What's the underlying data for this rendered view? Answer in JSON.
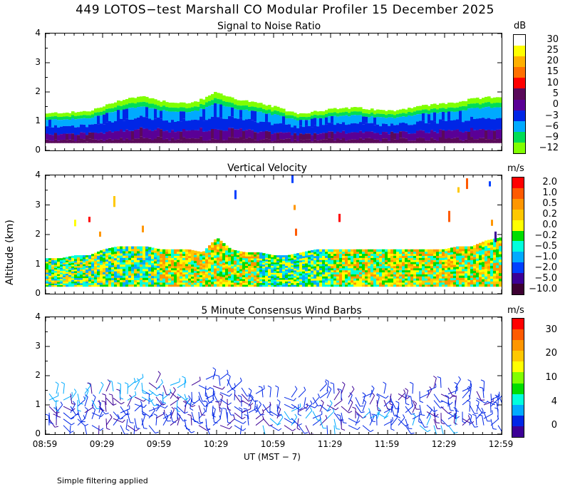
{
  "title": "449 LOTOS−test Marshall CO Modular Profiler 15 December 2025",
  "footer": "Simple filtering applied",
  "chart_data": [
    {
      "type": "heatmap",
      "title": "Signal to Noise Ratio",
      "units": "dB",
      "ylabel": "Altitude (km)",
      "ylim": [
        0,
        4
      ],
      "yticks": [
        "0",
        "1",
        "2",
        "3",
        "4"
      ],
      "xticks": [
        "08:59",
        "09:29",
        "09:59",
        "10:29",
        "10:59",
        "11:29",
        "11:59",
        "12:29",
        "12:59"
      ],
      "colorbar": {
        "labels": [
          "30",
          "25",
          "20",
          "15",
          "10",
          "5",
          "0",
          "−3",
          "−6",
          "−9",
          "−12"
        ],
        "colors": [
          "#ffffff",
          "#ffff00",
          "#ffb000",
          "#ff7000",
          "#ff0000",
          "#5a0a5a",
          "#5a0096",
          "#0026e6",
          "#00aaff",
          "#00dd55",
          "#80ff00"
        ]
      },
      "data_top_km": [
        1.25,
        1.3,
        1.3,
        1.35,
        1.5,
        1.7,
        1.8,
        1.85,
        1.7,
        1.65,
        1.6,
        1.75,
        2.0,
        1.8,
        1.7,
        1.6,
        1.5,
        1.35,
        1.25,
        1.35,
        1.4,
        1.45,
        1.45,
        1.4,
        1.35,
        1.4,
        1.5,
        1.55,
        1.6,
        1.65,
        1.75,
        1.8,
        1.85
      ],
      "data_bottom_km": 0.25
    },
    {
      "type": "heatmap",
      "title": "Vertical Velocity",
      "units": "m/s",
      "ylabel": "Altitude (km)",
      "ylim": [
        0,
        4
      ],
      "yticks": [
        "0",
        "1",
        "2",
        "3",
        "4"
      ],
      "xticks": [
        "08:59",
        "09:29",
        "09:59",
        "10:29",
        "10:59",
        "11:29",
        "11:59",
        "12:29",
        "12:59"
      ],
      "colorbar": {
        "labels": [
          "2.0",
          "1.0",
          "0.5",
          "0.2",
          "0.0",
          "−0.2",
          "−0.5",
          "−1.0",
          "−2.0",
          "−5.0",
          "−10.0"
        ],
        "colors": [
          "#ff0000",
          "#ff5a00",
          "#ff9600",
          "#ffc800",
          "#ffff00",
          "#00dd00",
          "#00ffdd",
          "#00aaff",
          "#0040ff",
          "#3c0096",
          "#3c0032"
        ]
      },
      "data_top_km": [
        1.2,
        1.2,
        1.3,
        1.3,
        1.5,
        1.6,
        1.6,
        1.6,
        1.5,
        1.5,
        1.5,
        1.4,
        1.9,
        1.5,
        1.4,
        1.4,
        1.3,
        1.3,
        1.4,
        1.5,
        1.5,
        1.5,
        1.5,
        1.5,
        1.5,
        1.5,
        1.5,
        1.5,
        1.5,
        1.6,
        1.6,
        1.8,
        1.9
      ],
      "data_bottom_km": 0.25
    },
    {
      "type": "scatter",
      "title": "5 Minute Consensus Wind Barbs",
      "units": "m/s",
      "ylabel": "Altitude (km)",
      "ylim": [
        0,
        4
      ],
      "yticks": [
        "0",
        "1",
        "2",
        "3",
        "4"
      ],
      "xticks": [
        "08:59",
        "09:29",
        "09:59",
        "10:29",
        "10:59",
        "11:29",
        "11:59",
        "12:29",
        "12:59"
      ],
      "xlabel": "UT  (MST − 7)",
      "colorbar": {
        "labels": [
          "30",
          "20",
          "10",
          "4",
          "0"
        ],
        "colors": [
          "#ff0000",
          "#ff5a00",
          "#ff9600",
          "#ffc800",
          "#ffff00",
          "#80ff00",
          "#00dd00",
          "#00ffdd",
          "#00aaff",
          "#0026e6",
          "#3c0096"
        ]
      },
      "barb_top_km": [
        1.6,
        1.6,
        1.6,
        1.6,
        1.7,
        1.8,
        2.0,
        2.0,
        1.9,
        1.8,
        1.9,
        2.1,
        2.1,
        1.8,
        1.6,
        1.5,
        1.5,
        1.5,
        1.5,
        1.7,
        1.6,
        1.5,
        1.5,
        1.6,
        1.6,
        1.6,
        1.7,
        1.8,
        1.8,
        1.7,
        1.7,
        1.6,
        1.6
      ]
    }
  ]
}
